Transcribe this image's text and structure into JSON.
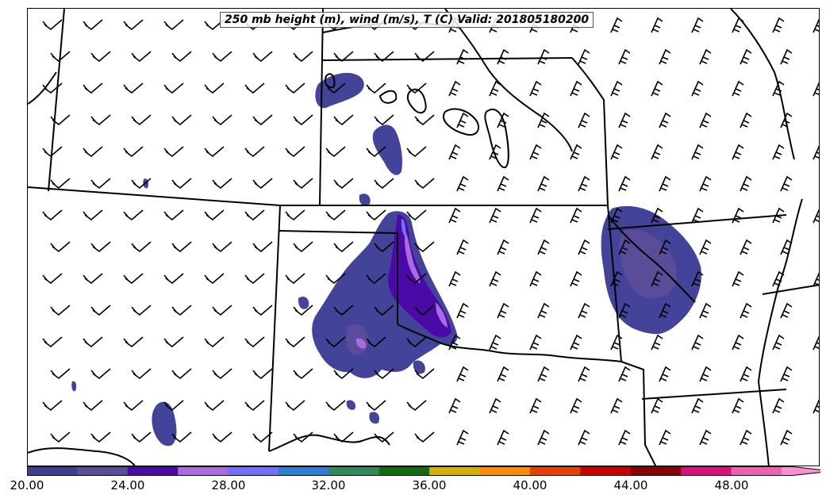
{
  "title": "250 mb height (m), wind (m/s), T (C) Valid: 201805180200",
  "colorbar": {
    "ticks": [
      "20.00",
      "24.00",
      "28.00",
      "32.00",
      "36.00",
      "40.00",
      "44.00",
      "48.00"
    ],
    "colors": [
      "#3f3f8f",
      "#5b4c9a",
      "#4b0aa8",
      "#a86be0",
      "#7070ff",
      "#2f7fd0",
      "#2e8b57",
      "#0e6b0e",
      "#d4b000",
      "#ff8c00",
      "#e84000",
      "#c80000",
      "#8b0000",
      "#d8107a",
      "#f060b0",
      "#ff90d0"
    ],
    "extend": "max"
  },
  "colors": {
    "state_borders": "#000000",
    "wind_barbs": "#000000"
  }
}
